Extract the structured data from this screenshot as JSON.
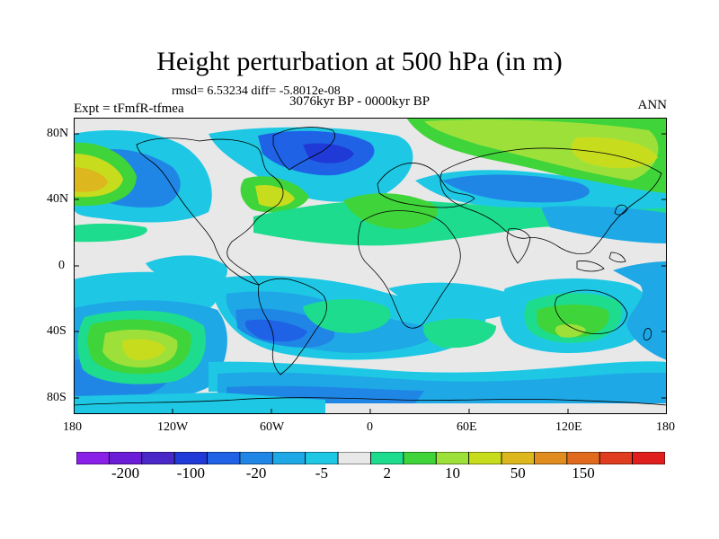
{
  "title": "Height perturbation at 500 hPa (in m)",
  "stats": "rmsd= 6.53234  diff= -5.8012e-08",
  "experiment": "Expt = tFmfR-tfmea",
  "period": "3076kyr BP - 0000kyr BP",
  "season": "ANN",
  "lat_ticks": [
    "80N",
    "40N",
    "0",
    "40S",
    "80S"
  ],
  "lon_ticks": [
    "180",
    "120W",
    "60W",
    "0",
    "60E",
    "120E",
    "180"
  ],
  "colorbar": {
    "colors": [
      "#8a1fe8",
      "#6a1cd6",
      "#4a28c8",
      "#1f3ad6",
      "#1f62e6",
      "#1f86e6",
      "#1ea8e6",
      "#1ec8e4",
      "#e8e8e8",
      "#1edc8e",
      "#3fd43a",
      "#9ee03a",
      "#c8dc1e",
      "#dcb81e",
      "#e08c1e",
      "#e06a1e",
      "#e03c1e",
      "#e01e1e"
    ],
    "labels": [
      "-200",
      "-100",
      "-20",
      "-5",
      "2",
      "10",
      "50",
      "150"
    ]
  },
  "color_key": {
    "neutral": "#e8e8e8",
    "light_blue": "#1ec8e4",
    "cyan_blue": "#1ea8e6",
    "mid_blue": "#1f86e6",
    "blue": "#1f62e6",
    "deep_blue": "#1f3ad6",
    "light_green": "#1edc8e",
    "green": "#3fd43a",
    "yellow_green": "#9ee03a",
    "yellow": "#c8dc1e",
    "orange": "#dcb81e"
  }
}
